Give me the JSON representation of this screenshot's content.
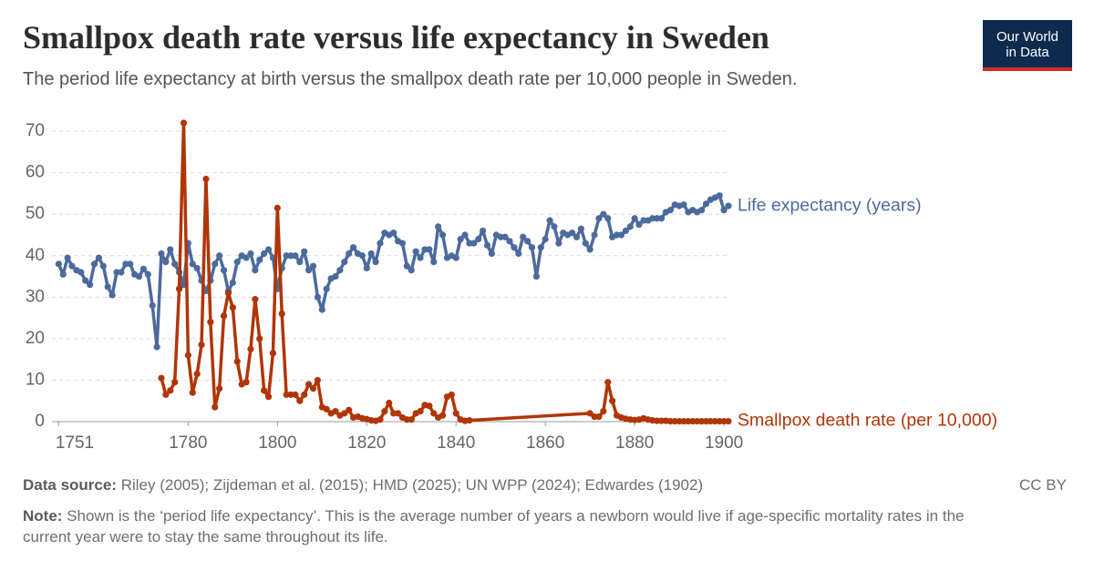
{
  "chart_data": {
    "type": "line",
    "title": "Smallpox death rate versus life expectancy in Sweden",
    "subtitle": "The period life expectancy at birth versus the smallpox death rate per 10,000 people in Sweden.",
    "logo": [
      "Our World",
      "in Data"
    ],
    "source_label": "Data source:",
    "source": "Riley (2005); Zijdeman et al. (2015); HMD (2025); UN WPP (2024); Edwardes (1902)",
    "note_label": "Note:",
    "note": "Shown is the ‘period life expectancy’. This is the average number of years a newborn would live if age-specific mortality rates in the current year were to stay the same throughout its life.",
    "license": "CC BY",
    "xlim": [
      1749.5,
      1901
    ],
    "xticks": [
      1751,
      1780,
      1800,
      1820,
      1840,
      1860,
      1880,
      1900
    ],
    "ylim": [
      0,
      72
    ],
    "yticks": [
      0,
      10,
      20,
      30,
      40,
      50,
      60,
      70
    ],
    "grid": true,
    "series": [
      {
        "name": "Life expectancy (years)",
        "color": "#4c6a9c",
        "x": [
          1751,
          1752,
          1753,
          1754,
          1755,
          1756,
          1757,
          1758,
          1759,
          1760,
          1761,
          1762,
          1763,
          1764,
          1765,
          1766,
          1767,
          1768,
          1769,
          1770,
          1771,
          1772,
          1773,
          1774,
          1775,
          1776,
          1777,
          1778,
          1779,
          1780,
          1781,
          1782,
          1783,
          1784,
          1785,
          1786,
          1787,
          1788,
          1789,
          1790,
          1791,
          1792,
          1793,
          1794,
          1795,
          1796,
          1797,
          1798,
          1799,
          1800,
          1801,
          1802,
          1803,
          1804,
          1805,
          1806,
          1807,
          1808,
          1809,
          1810,
          1811,
          1812,
          1813,
          1814,
          1815,
          1816,
          1817,
          1818,
          1819,
          1820,
          1821,
          1822,
          1823,
          1824,
          1825,
          1826,
          1827,
          1828,
          1829,
          1830,
          1831,
          1832,
          1833,
          1834,
          1835,
          1836,
          1837,
          1838,
          1839,
          1840,
          1841,
          1842,
          1843,
          1844,
          1845,
          1846,
          1847,
          1848,
          1849,
          1850,
          1851,
          1852,
          1853,
          1854,
          1855,
          1856,
          1857,
          1858,
          1859,
          1860,
          1861,
          1862,
          1863,
          1864,
          1865,
          1866,
          1867,
          1868,
          1869,
          1870,
          1871,
          1872,
          1873,
          1874,
          1875,
          1876,
          1877,
          1878,
          1879,
          1880,
          1881,
          1882,
          1883,
          1884,
          1885,
          1886,
          1887,
          1888,
          1889,
          1890,
          1891,
          1892,
          1893,
          1894,
          1895,
          1896,
          1897,
          1898,
          1899,
          1900,
          1901
        ],
        "values": [
          38,
          35.5,
          39.5,
          37.5,
          36.5,
          36,
          34,
          33,
          38,
          39.5,
          37.5,
          32.5,
          30.5,
          36,
          36,
          38,
          38,
          35.5,
          35,
          36.8,
          35.5,
          28,
          18,
          40.5,
          38.5,
          41.5,
          38,
          36,
          33,
          43,
          38,
          37,
          34,
          31.5,
          34,
          38,
          40,
          36.5,
          31.5,
          33.5,
          38.5,
          40,
          39.5,
          40.5,
          36.5,
          39,
          40.5,
          41.5,
          39.5,
          32,
          37,
          40,
          40,
          40,
          38.5,
          41,
          36.5,
          37.5,
          30,
          27,
          32,
          34.5,
          35,
          36.5,
          38.5,
          40.5,
          42,
          40.5,
          40,
          37,
          40.5,
          38.5,
          43,
          45.5,
          45,
          45.5,
          43.5,
          43,
          37.5,
          36.5,
          41,
          39.5,
          41.5,
          41.5,
          38.5,
          47,
          45,
          39.5,
          40,
          39.5,
          44,
          45,
          43,
          43,
          44,
          46,
          42.5,
          40.5,
          45,
          44.5,
          44.5,
          43.5,
          42,
          40.5,
          44.5,
          43.5,
          42,
          35,
          42,
          44,
          48.5,
          47,
          43,
          45.5,
          45,
          45.5,
          44.5,
          46.5,
          43,
          41.5,
          45,
          49,
          50,
          49,
          44.5,
          45,
          45,
          46,
          47,
          49,
          47.5,
          48.5,
          48.5,
          49,
          49,
          49,
          50.5,
          51,
          52.3,
          52,
          52.3,
          50.5,
          51,
          50.5,
          51,
          52.5,
          53.5,
          54,
          54.5,
          51,
          52
        ]
      },
      {
        "name": "Smallpox death rate (per 10,000)",
        "color": "#b13507",
        "x": [
          1774,
          1775,
          1776,
          1777,
          1778,
          1779,
          1780,
          1781,
          1782,
          1783,
          1784,
          1785,
          1786,
          1787,
          1788,
          1789,
          1790,
          1791,
          1792,
          1793,
          1794,
          1795,
          1796,
          1797,
          1798,
          1799,
          1800,
          1801,
          1802,
          1803,
          1804,
          1805,
          1806,
          1807,
          1808,
          1809,
          1810,
          1811,
          1812,
          1813,
          1814,
          1815,
          1816,
          1817,
          1818,
          1819,
          1820,
          1821,
          1822,
          1823,
          1824,
          1825,
          1826,
          1827,
          1828,
          1829,
          1830,
          1831,
          1832,
          1833,
          1834,
          1835,
          1836,
          1837,
          1838,
          1839,
          1840,
          1841,
          1842,
          1843,
          1870,
          1871,
          1872,
          1873,
          1874,
          1875,
          1876,
          1877,
          1878,
          1879,
          1880,
          1881,
          1882,
          1883,
          1884,
          1885,
          1886,
          1887,
          1888,
          1889,
          1890,
          1891,
          1892,
          1893,
          1894,
          1895,
          1896,
          1897,
          1898,
          1899,
          1900,
          1901
        ],
        "values": [
          10.5,
          6.5,
          7.5,
          9.5,
          32,
          72,
          16,
          7,
          11.5,
          18.5,
          58.5,
          24,
          3.5,
          8,
          25.5,
          31,
          27.5,
          14.5,
          9,
          9.5,
          17.5,
          29.5,
          20,
          7.5,
          6,
          16.5,
          51.5,
          26,
          6.5,
          6.5,
          6.5,
          5,
          6.5,
          9,
          8,
          10,
          3.5,
          3,
          2,
          2.5,
          1.5,
          2,
          2.8,
          1,
          1.2,
          0.8,
          0.6,
          0.3,
          0.2,
          0.5,
          2.5,
          4.5,
          2,
          2,
          1,
          0.5,
          0.5,
          2,
          2.5,
          4,
          3.8,
          2,
          1,
          1.5,
          6,
          6.5,
          2,
          0.5,
          0.2,
          0.3,
          2,
          1.2,
          1.2,
          2.5,
          9.5,
          5,
          1.5,
          1,
          0.7,
          0.5,
          0.4,
          0.5,
          0.8,
          0.5,
          0.3,
          0.2,
          0.2,
          0.2,
          0.1,
          0.1,
          0.1,
          0.1,
          0.1,
          0.1,
          0.1,
          0.1,
          0.1,
          0.1,
          0.1,
          0.1,
          0.1,
          0.1
        ]
      }
    ]
  }
}
